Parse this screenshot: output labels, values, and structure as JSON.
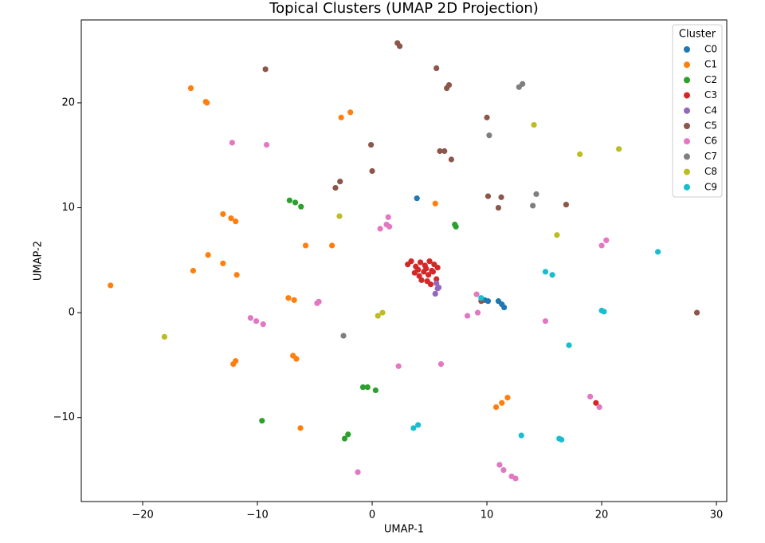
{
  "chart_data": {
    "type": "scatter",
    "title": "Topical Clusters (UMAP 2D Projection)",
    "x_label": "UMAP-1",
    "y_label": "UMAP-2",
    "legend_title": "Cluster",
    "legend": "upper right",
    "xlim": [
      -25.35,
      30.9
    ],
    "ylim": [
      -18.0,
      27.9
    ],
    "xticks": [
      {
        "value": -20,
        "label": "−20"
      },
      {
        "value": -10,
        "label": "−10"
      },
      0,
      10,
      20,
      30
    ],
    "yticks": [
      {
        "value": -10,
        "label": "−10"
      },
      0,
      10,
      20
    ],
    "series": [
      {
        "name": "C0",
        "color": "#1f77b4",
        "x": [
          3.9,
          9.8,
          10.1,
          11.0,
          11.3,
          11.5
        ],
        "values": [
          10.9,
          1.2,
          1.1,
          1.1,
          0.8,
          0.5
        ]
      },
      {
        "name": "C1",
        "color": "#ff7f0e",
        "x": [
          -15.8,
          -14.5,
          -14.4,
          -2.7,
          -1.9,
          -13.0,
          -12.3,
          -11.9,
          -14.3,
          -15.6,
          -13.0,
          -11.8,
          -22.8,
          -5.8,
          -3.5,
          5.5,
          -7.3,
          -6.8,
          -6.9,
          -6.6,
          -12.1,
          -11.9,
          -6.25,
          10.8,
          11.3,
          11.8
        ],
        "values": [
          21.4,
          20.1,
          20.0,
          18.6,
          19.1,
          9.4,
          9.0,
          8.7,
          5.5,
          4.0,
          4.7,
          3.6,
          2.6,
          6.4,
          6.4,
          10.4,
          1.4,
          1.2,
          -4.1,
          -4.4,
          -4.9,
          -4.6,
          -11.0,
          -9.0,
          -8.6,
          -8.1
        ]
      },
      {
        "name": "C2",
        "color": "#2ca02c",
        "x": [
          -7.2,
          -6.7,
          -6.2,
          7.2,
          7.3,
          -0.8,
          -0.4,
          0.3,
          -9.6,
          -2.4,
          -2.1
        ],
        "values": [
          10.7,
          10.5,
          10.1,
          8.4,
          8.2,
          -7.1,
          -7.1,
          -7.4,
          -10.3,
          -12.0,
          -11.6
        ]
      },
      {
        "name": "C3",
        "color": "#d62728",
        "x": [
          3.1,
          3.4,
          3.8,
          4.2,
          4.6,
          5.0,
          5.4,
          5.7,
          3.7,
          4.1,
          4.5,
          4.9,
          5.3,
          4.3,
          4.8,
          5.1,
          5.6,
          4.0,
          4.7,
          5.2,
          19.5
        ],
        "values": [
          4.6,
          4.9,
          4.4,
          4.8,
          4.5,
          4.9,
          4.6,
          4.3,
          3.8,
          3.5,
          3.9,
          3.6,
          3.9,
          3.1,
          3.0,
          2.7,
          3.2,
          4.1,
          4.2,
          4.0,
          -8.6
        ]
      },
      {
        "name": "C4",
        "color": "#9467bd",
        "x": [
          5.6,
          5.8,
          5.7,
          5.5
        ],
        "values": [
          2.8,
          2.4,
          2.3,
          1.8
        ]
      },
      {
        "name": "C5",
        "color": "#8c564b",
        "x": [
          -9.3,
          2.2,
          2.4,
          5.6,
          6.5,
          6.7,
          5.9,
          6.3,
          6.9,
          10.0,
          -0.1,
          0.0,
          -2.8,
          -3.2,
          10.1,
          11.25,
          11.0,
          16.9,
          9.5,
          28.3
        ],
        "values": [
          23.2,
          25.7,
          25.4,
          23.3,
          21.4,
          21.7,
          15.4,
          15.4,
          14.6,
          18.6,
          16.0,
          13.5,
          12.5,
          11.9,
          11.1,
          11.0,
          10.0,
          10.3,
          1.1,
          0.0
        ]
      },
      {
        "name": "C6",
        "color": "#e377c2",
        "x": [
          -12.2,
          -9.2,
          1.4,
          1.25,
          1.5,
          0.7,
          -10.6,
          -10.1,
          -9.5,
          -4.8,
          -4.65,
          8.3,
          9.2,
          9.1,
          2.3,
          6.0,
          15.1,
          20.0,
          20.4,
          19.0,
          19.8,
          -1.25,
          11.1,
          11.45,
          12.15,
          12.5
        ],
        "values": [
          16.2,
          16.0,
          9.1,
          8.4,
          8.2,
          8.0,
          -0.5,
          -0.8,
          -1.1,
          0.9,
          1.05,
          -0.3,
          0.0,
          1.75,
          -5.1,
          -4.9,
          -0.8,
          6.4,
          6.9,
          -8.0,
          -9.0,
          -15.2,
          -14.5,
          -15.0,
          -15.6,
          -15.8
        ]
      },
      {
        "name": "C7",
        "color": "#7f7f7f",
        "x": [
          12.8,
          13.1,
          10.2,
          14.3,
          14.0,
          -2.5
        ],
        "values": [
          21.5,
          21.8,
          16.9,
          11.3,
          10.2,
          -2.2
        ]
      },
      {
        "name": "C8",
        "color": "#bcbd22",
        "x": [
          14.1,
          18.1,
          21.5,
          -2.85,
          16.1,
          -18.1,
          0.5,
          0.9
        ],
        "values": [
          17.9,
          15.1,
          15.6,
          9.2,
          7.4,
          -2.3,
          -0.3,
          0.0
        ]
      },
      {
        "name": "C9",
        "color": "#17becf",
        "x": [
          15.1,
          15.7,
          24.9,
          20.0,
          20.2,
          9.5,
          17.15,
          4.0,
          3.6,
          13.0,
          16.3,
          16.5
        ],
        "values": [
          3.9,
          3.6,
          5.8,
          0.2,
          0.1,
          1.4,
          -3.1,
          -10.7,
          -11.0,
          -11.7,
          -12.0,
          -12.1
        ]
      }
    ]
  }
}
